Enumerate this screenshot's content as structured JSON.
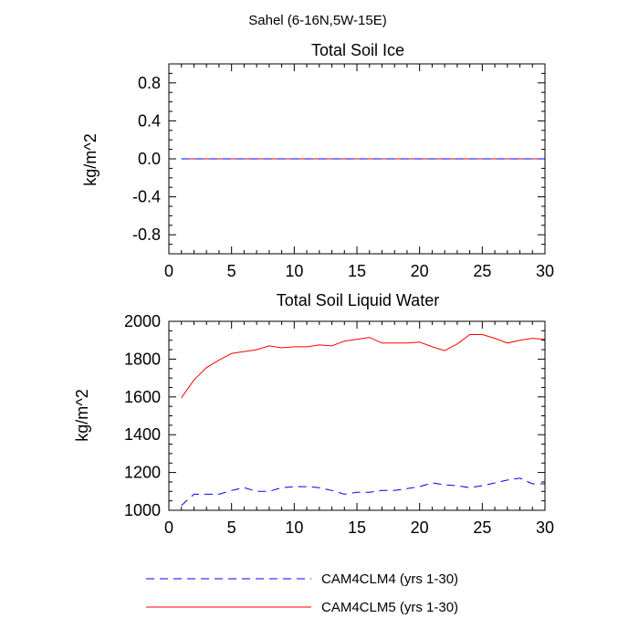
{
  "figure_title": "Sahel (6-16N,5W-15E)",
  "colors": {
    "series_clm4": "#0000ff",
    "series_clm5": "#ff0000",
    "axis": "#000000"
  },
  "legend": {
    "placement": "bottom-center",
    "entries": [
      {
        "label": "CAM4CLM4 (yrs 1-30)",
        "style": "dashed",
        "color": "#0000ff"
      },
      {
        "label": "CAM4CLM5 (yrs 1-30)",
        "style": "solid",
        "color": "#ff0000"
      }
    ]
  },
  "chart_data": [
    {
      "type": "line",
      "title": "Total Soil Ice",
      "xlabel": "",
      "ylabel": "kg/m^2",
      "xlim": [
        0,
        30
      ],
      "ylim": [
        -1,
        1
      ],
      "x_ticks": [
        0,
        5,
        10,
        15,
        20,
        25,
        30
      ],
      "x_tick_labels": [
        "0",
        "5",
        "10",
        "15",
        "20",
        "25",
        "30"
      ],
      "y_ticks": [
        -0.8,
        -0.4,
        0.0,
        0.4,
        0.8
      ],
      "y_tick_labels": [
        "-0.8",
        "-0.4",
        "0.0",
        "0.4",
        "0.8"
      ],
      "grid": false,
      "x": [
        1,
        2,
        3,
        4,
        5,
        6,
        7,
        8,
        9,
        10,
        11,
        12,
        13,
        14,
        15,
        16,
        17,
        18,
        19,
        20,
        21,
        22,
        23,
        24,
        25,
        26,
        27,
        28,
        29,
        30
      ],
      "series": [
        {
          "name": "CAM4CLM4 (yrs 1-30)",
          "style": "dashed",
          "color": "#0000ff",
          "values": [
            0,
            0,
            0,
            0,
            0,
            0,
            0,
            0,
            0,
            0,
            0,
            0,
            0,
            0,
            0,
            0,
            0,
            0,
            0,
            0,
            0,
            0,
            0,
            0,
            0,
            0,
            0,
            0,
            0,
            0
          ]
        },
        {
          "name": "CAM4CLM5 (yrs 1-30)",
          "style": "solid",
          "color": "#ff0000",
          "values": [
            0,
            0,
            0,
            0,
            0,
            0,
            0,
            0,
            0,
            0,
            0,
            0,
            0,
            0,
            0,
            0,
            0,
            0,
            0,
            0,
            0,
            0,
            0,
            0,
            0,
            0,
            0,
            0,
            0,
            0
          ]
        }
      ]
    },
    {
      "type": "line",
      "title": "Total Soil Liquid Water",
      "xlabel": "",
      "ylabel": "kg/m^2",
      "xlim": [
        0,
        30
      ],
      "ylim": [
        1000,
        2000
      ],
      "x_ticks": [
        0,
        5,
        10,
        15,
        20,
        25,
        30
      ],
      "x_tick_labels": [
        "0",
        "5",
        "10",
        "15",
        "20",
        "25",
        "30"
      ],
      "y_ticks": [
        1000,
        1200,
        1400,
        1600,
        1800,
        2000
      ],
      "y_tick_labels": [
        "1000",
        "1200",
        "1400",
        "1600",
        "1800",
        "2000"
      ],
      "grid": false,
      "x": [
        1,
        2,
        3,
        4,
        5,
        6,
        7,
        8,
        9,
        10,
        11,
        12,
        13,
        14,
        15,
        16,
        17,
        18,
        19,
        20,
        21,
        22,
        23,
        24,
        25,
        26,
        27,
        28,
        29,
        30
      ],
      "series": [
        {
          "name": "CAM4CLM4 (yrs 1-30)",
          "style": "dashed",
          "color": "#0000ff",
          "values": [
            1025,
            1085,
            1085,
            1085,
            1105,
            1120,
            1100,
            1100,
            1120,
            1125,
            1125,
            1120,
            1105,
            1085,
            1095,
            1095,
            1105,
            1105,
            1115,
            1125,
            1145,
            1135,
            1130,
            1120,
            1130,
            1145,
            1160,
            1170,
            1140,
            1140
          ]
        },
        {
          "name": "CAM4CLM5 (yrs 1-30)",
          "style": "solid",
          "color": "#ff0000",
          "values": [
            1595,
            1690,
            1755,
            1795,
            1830,
            1840,
            1850,
            1870,
            1860,
            1865,
            1865,
            1875,
            1870,
            1895,
            1905,
            1915,
            1885,
            1885,
            1885,
            1890,
            1865,
            1845,
            1880,
            1930,
            1930,
            1910,
            1885,
            1900,
            1910,
            1905
          ]
        }
      ]
    }
  ]
}
